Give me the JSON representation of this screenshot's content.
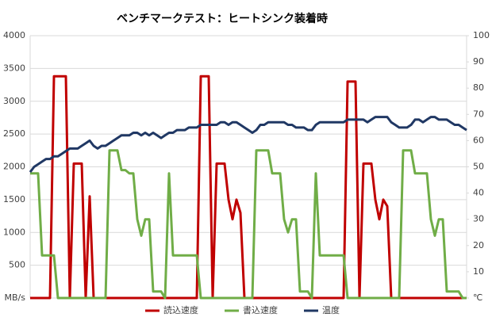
{
  "chart_data": {
    "type": "line",
    "title": "ベンチマークテスト：ヒートシンク装着時",
    "ylim": [
      0,
      4000
    ],
    "yticks": [
      {
        "value": 0,
        "label": "MB/s"
      },
      500,
      1000,
      1500,
      2000,
      2500,
      3000,
      3500,
      4000
    ],
    "y2lim": [
      0,
      100
    ],
    "y2ticks": [
      {
        "value": 0,
        "label": "℃"
      },
      10,
      20,
      30,
      40,
      50,
      60,
      70,
      80,
      90,
      100
    ],
    "grid": true,
    "legend": "bottom",
    "series": [
      {
        "name": "読込速度",
        "color": "#c00000",
        "values": [
          0,
          0,
          0,
          0,
          0,
          0,
          3380,
          3380,
          3380,
          3380,
          0,
          2050,
          2050,
          2050,
          0,
          1550,
          0,
          0,
          0,
          0,
          0,
          0,
          0,
          0,
          0,
          0,
          0,
          0,
          0,
          0,
          0,
          0,
          0,
          0,
          0,
          0,
          0,
          0,
          0,
          0,
          0,
          0,
          0,
          3380,
          3380,
          3380,
          0,
          2050,
          2050,
          2050,
          1500,
          1200,
          1500,
          1300,
          0,
          0,
          0,
          0,
          0,
          0,
          0,
          0,
          0,
          0,
          0,
          0,
          0,
          0,
          0,
          0,
          0,
          0,
          0,
          0,
          0,
          0,
          0,
          0,
          0,
          0,
          3300,
          3300,
          3300,
          0,
          2050,
          2050,
          2050,
          1500,
          1200,
          1500,
          1400,
          0,
          0,
          0,
          0,
          0,
          0,
          0,
          0,
          0,
          0,
          0,
          0,
          0,
          0,
          0,
          0,
          0,
          0,
          0,
          0
        ]
      },
      {
        "name": "書込速度",
        "color": "#70ad47",
        "values": [
          1900,
          1900,
          1900,
          650,
          650,
          650,
          650,
          0,
          0,
          0,
          0,
          0,
          0,
          0,
          0,
          0,
          0,
          0,
          0,
          0,
          2250,
          2250,
          2250,
          1950,
          1950,
          1900,
          1900,
          1200,
          950,
          1200,
          1200,
          100,
          100,
          100,
          0,
          1900,
          650,
          650,
          650,
          650,
          650,
          650,
          650,
          0,
          0,
          0,
          0,
          0,
          0,
          0,
          0,
          0,
          0,
          0,
          0,
          0,
          0,
          2250,
          2250,
          2250,
          2250,
          1900,
          1900,
          1900,
          1200,
          1000,
          1200,
          1200,
          100,
          100,
          100,
          0,
          1900,
          650,
          650,
          650,
          650,
          650,
          650,
          650,
          0,
          0,
          0,
          0,
          0,
          0,
          0,
          0,
          0,
          0,
          0,
          0,
          0,
          0,
          2250,
          2250,
          2250,
          1900,
          1900,
          1900,
          1900,
          1200,
          950,
          1200,
          1200,
          100,
          100,
          100,
          100,
          0,
          0
        ]
      },
      {
        "name": "温度",
        "color": "#203864",
        "axis": "y2",
        "values": [
          48,
          50,
          51,
          52,
          53,
          53,
          54,
          54,
          55,
          56,
          57,
          57,
          57,
          58,
          59,
          60,
          58,
          57,
          58,
          58,
          59,
          60,
          61,
          62,
          62,
          62,
          63,
          63,
          62,
          63,
          62,
          63,
          62,
          61,
          62,
          63,
          63,
          64,
          64,
          64,
          65,
          65,
          65,
          66,
          66,
          66,
          66,
          66,
          67,
          67,
          66,
          67,
          67,
          66,
          65,
          64,
          63,
          64,
          66,
          66,
          67,
          67,
          67,
          67,
          67,
          66,
          66,
          65,
          65,
          65,
          64,
          64,
          66,
          67,
          67,
          67,
          67,
          67,
          67,
          67,
          68,
          68,
          68,
          68,
          68,
          67,
          68,
          69,
          69,
          69,
          69,
          67,
          66,
          65,
          65,
          65,
          66,
          68,
          68,
          67,
          68,
          69,
          69,
          68,
          68,
          68,
          67,
          66,
          66,
          65,
          64
        ]
      }
    ]
  }
}
